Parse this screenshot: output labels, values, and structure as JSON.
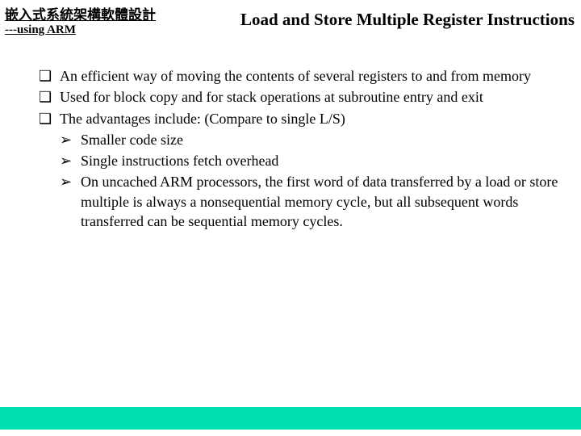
{
  "header": {
    "line1": "嵌入式系統架構軟體設計",
    "line2": "---using ARM",
    "line1_fontsize": 17,
    "line2_fontsize": 15,
    "title": "Load and Store Multiple Register Instructions",
    "title_fontsize": 21
  },
  "content": {
    "fontsize": 18,
    "line_height": 1.35,
    "bullet_square": "❑",
    "bullet_arrow": "➢",
    "items": [
      {
        "text": "An efficient way of moving the contents of several registers to and from memory"
      },
      {
        "text": "Used for block copy and for stack operations at subroutine entry and exit"
      },
      {
        "text": "The advantages include: (Compare to single L/S)",
        "sub": [
          {
            "text": "Smaller code size"
          },
          {
            "text": "Single instructions fetch overhead"
          },
          {
            "text": "On uncached ARM processors, the first word of data transferred by a load or store multiple is always a nonsequential memory cycle, but all subsequent words transferred can be sequential memory cycles."
          }
        ]
      }
    ]
  },
  "colors": {
    "text": "#000000",
    "background": "#ffffff",
    "footer_bar": "#00e0b0"
  }
}
